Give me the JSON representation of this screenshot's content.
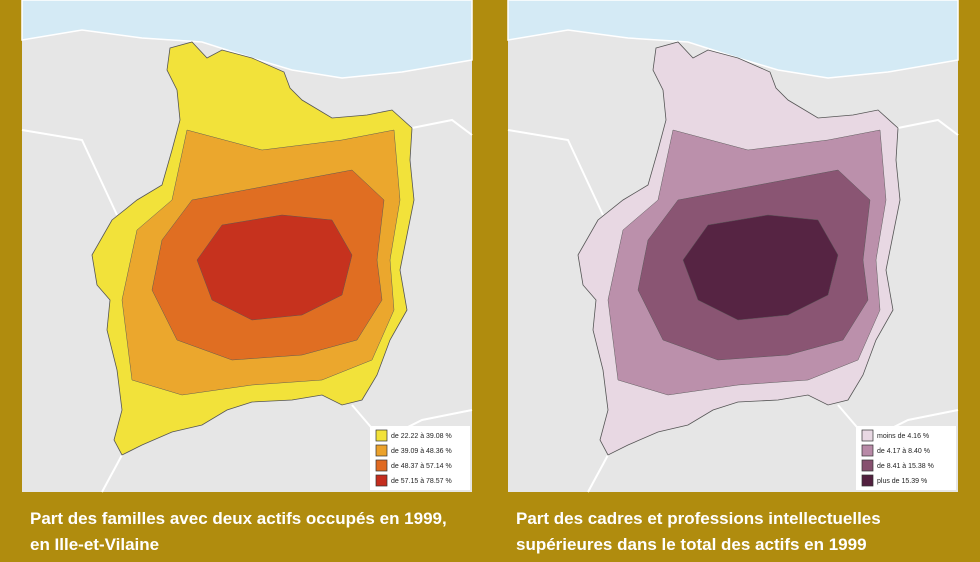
{
  "maps": [
    {
      "caption_lines": [
        "Part des familles avec deux actifs occupés en 1999,",
        "en Ille-et-Vilaine"
      ],
      "legend": [
        {
          "label": "de 22.22 à 39.08 %",
          "color": "#f2e23a"
        },
        {
          "label": "de 39.09 à 48.36 %",
          "color": "#eba22c"
        },
        {
          "label": "de 48.37 à 57.14 %",
          "color": "#e06a22"
        },
        {
          "label": "de 57.15 à 78.57 %",
          "color": "#c42d1e"
        }
      ]
    },
    {
      "caption_lines": [
        "Part des cadres et professions intellectuelles",
        "supérieures dans le total des actifs en 1999"
      ],
      "legend": [
        {
          "label": "moins de 4.16 %",
          "color": "#e8d8e3"
        },
        {
          "label": "de 4.17 à 8.40 %",
          "color": "#b88aa7"
        },
        {
          "label": "de 8.41 à 15.38 %",
          "color": "#86506f"
        },
        {
          "label": "plus de 15.39 %",
          "color": "#52203f"
        }
      ]
    }
  ]
}
